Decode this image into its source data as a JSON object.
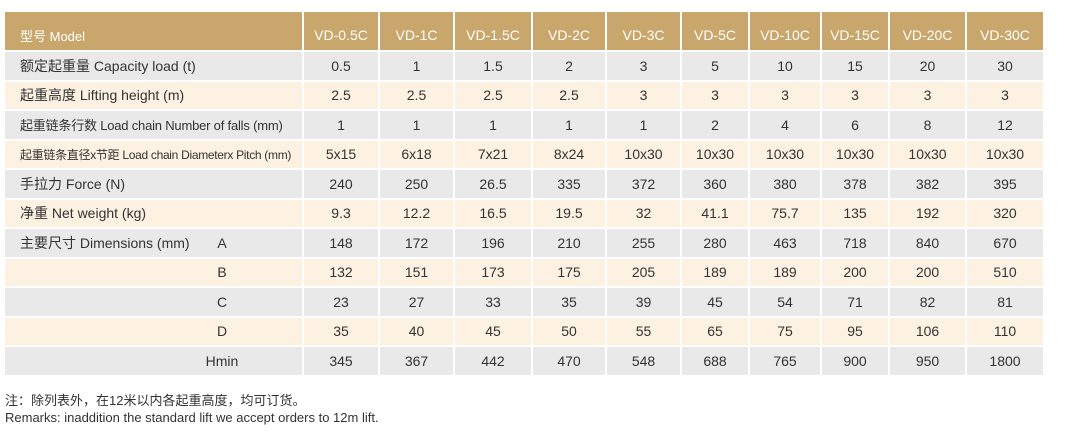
{
  "table": {
    "header": {
      "label": "型号 Model",
      "models": [
        "VD-0.5C",
        "VD-1C",
        "VD-1.5C",
        "VD-2C",
        "VD-3C",
        "VD-5C",
        "VD-10C",
        "VD-15C",
        "VD-20C",
        "VD-30C"
      ]
    },
    "rows": [
      {
        "label": "额定起重量 Capacity load (t)",
        "values": [
          "0.5",
          "1",
          "1.5",
          "2",
          "3",
          "5",
          "10",
          "15",
          "20",
          "30"
        ]
      },
      {
        "label": "起重高度 Lifting height (m)",
        "values": [
          "2.5",
          "2.5",
          "2.5",
          "2.5",
          "3",
          "3",
          "3",
          "3",
          "3",
          "3"
        ]
      },
      {
        "label": "起重链条行数 Load chain Number of falls (mm)",
        "values": [
          "1",
          "1",
          "1",
          "1",
          "1",
          "2",
          "4",
          "6",
          "8",
          "12"
        ]
      },
      {
        "label": "起重链条直径x节距 Load chain Diameterx Pitch (mm)",
        "values": [
          "5x15",
          "6x18",
          "7x21",
          "8x24",
          "10x30",
          "10x30",
          "10x30",
          "10x30",
          "10x30",
          "10x30"
        ]
      },
      {
        "label": "手拉力 Force (N)",
        "values": [
          "240",
          "250",
          "26.5",
          "335",
          "372",
          "360",
          "380",
          "378",
          "382",
          "395"
        ]
      },
      {
        "label": "净重 Net weight (kg)",
        "values": [
          "9.3",
          "12.2",
          "16.5",
          "19.5",
          "32",
          "41.1",
          "75.7",
          "135",
          "192",
          "320"
        ]
      },
      {
        "label": "主要尺寸 Dimensions (mm)",
        "sub": "A",
        "values": [
          "148",
          "172",
          "196",
          "210",
          "255",
          "280",
          "463",
          "718",
          "840",
          "670"
        ]
      },
      {
        "sub": "B",
        "values": [
          "132",
          "151",
          "173",
          "175",
          "205",
          "189",
          "189",
          "200",
          "200",
          "510"
        ]
      },
      {
        "sub": "C",
        "values": [
          "23",
          "27",
          "33",
          "35",
          "39",
          "45",
          "54",
          "71",
          "82",
          "81"
        ]
      },
      {
        "sub": "D",
        "values": [
          "35",
          "40",
          "45",
          "50",
          "55",
          "65",
          "75",
          "95",
          "106",
          "110"
        ]
      },
      {
        "sub": "Hmin",
        "values": [
          "345",
          "367",
          "442",
          "470",
          "548",
          "688",
          "765",
          "900",
          "950",
          "1800"
        ]
      }
    ]
  },
  "remarks": {
    "cn": "注：除列表外，在12米以内各起重高度，均可订货。",
    "en": "Remarks: inaddition the standard lift we accept orders to 12m lift."
  },
  "colors": {
    "header_bg": "#c9a66b",
    "row_gray": "#e9e9e9",
    "row_cream": "#fdf1e2",
    "header_text": "#ffffff",
    "body_text": "#333333"
  }
}
